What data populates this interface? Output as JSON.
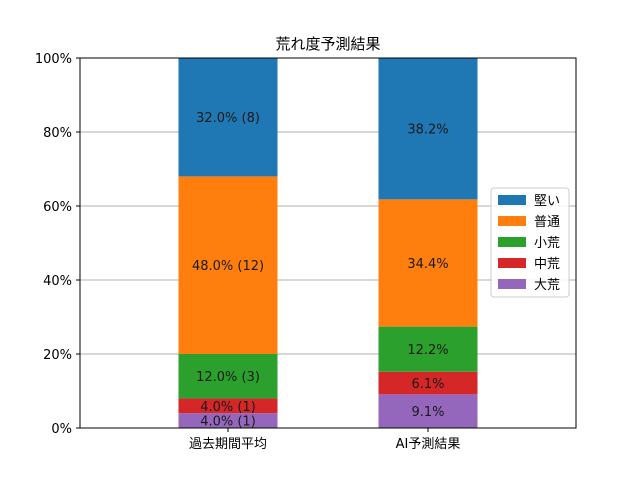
{
  "chart_data": {
    "type": "bar",
    "stacked": true,
    "title": "荒れ度予測結果",
    "xlabel": "",
    "ylabel": "",
    "categories": [
      "過去期間平均",
      "AI予測結果"
    ],
    "ylim": [
      0,
      100
    ],
    "yticks": [
      "0%",
      "20%",
      "40%",
      "60%",
      "80%",
      "100%"
    ],
    "grid": true,
    "legend_position": "center-right",
    "series": [
      {
        "name": "大荒",
        "color": "#9467bd",
        "values": [
          4.0,
          9.1
        ],
        "labels": [
          "4.0% (1)",
          "9.1%"
        ]
      },
      {
        "name": "中荒",
        "color": "#d62728",
        "values": [
          4.0,
          6.1
        ],
        "labels": [
          "4.0% (1)",
          "6.1%"
        ]
      },
      {
        "name": "小荒",
        "color": "#2ca02c",
        "values": [
          12.0,
          12.2
        ],
        "labels": [
          "12.0% (3)",
          "12.2%"
        ]
      },
      {
        "name": "普通",
        "color": "#ff7f0e",
        "values": [
          48.0,
          34.4
        ],
        "labels": [
          "48.0% (12)",
          "34.4%"
        ]
      },
      {
        "name": "堅い",
        "color": "#1f77b4",
        "values": [
          32.0,
          38.2
        ],
        "labels": [
          "32.0% (8)",
          "38.2%"
        ]
      }
    ],
    "legend_order": [
      "堅い",
      "普通",
      "小荒",
      "中荒",
      "大荒"
    ]
  }
}
